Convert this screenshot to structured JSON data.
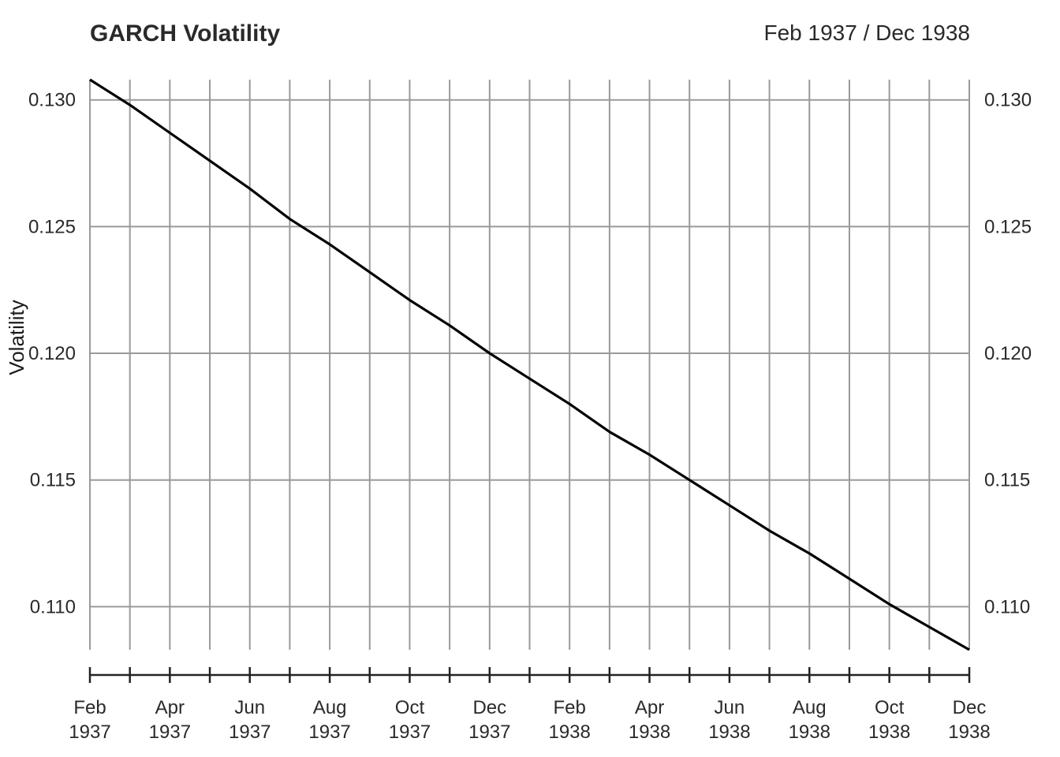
{
  "chart_data": {
    "type": "line",
    "title": "GARCH Volatility",
    "date_range_label": "Feb 1937 / Dec 1938",
    "ylabel": "Volatility",
    "xlabel": "",
    "ylim": [
      0.1083,
      0.1308
    ],
    "yticks": [
      "0.110",
      "0.115",
      "0.120",
      "0.125",
      "0.130"
    ],
    "grid": true,
    "x_ticks": [
      {
        "date": "1937-02",
        "month": "Feb",
        "year": "1937",
        "label": true
      },
      {
        "date": "1937-03",
        "month": "",
        "year": "",
        "label": false
      },
      {
        "date": "1937-04",
        "month": "Apr",
        "year": "1937",
        "label": true
      },
      {
        "date": "1937-05",
        "month": "",
        "year": "",
        "label": false
      },
      {
        "date": "1937-06",
        "month": "Jun",
        "year": "1937",
        "label": true
      },
      {
        "date": "1937-07",
        "month": "",
        "year": "",
        "label": false
      },
      {
        "date": "1937-08",
        "month": "Aug",
        "year": "1937",
        "label": true
      },
      {
        "date": "1937-09",
        "month": "",
        "year": "",
        "label": false
      },
      {
        "date": "1937-10",
        "month": "Oct",
        "year": "1937",
        "label": true
      },
      {
        "date": "1937-11",
        "month": "",
        "year": "",
        "label": false
      },
      {
        "date": "1937-12",
        "month": "Dec",
        "year": "1937",
        "label": true
      },
      {
        "date": "1938-01",
        "month": "",
        "year": "",
        "label": false
      },
      {
        "date": "1938-02",
        "month": "Feb",
        "year": "1938",
        "label": true
      },
      {
        "date": "1938-03",
        "month": "",
        "year": "",
        "label": false
      },
      {
        "date": "1938-04",
        "month": "Apr",
        "year": "1938",
        "label": true
      },
      {
        "date": "1938-05",
        "month": "",
        "year": "",
        "label": false
      },
      {
        "date": "1938-06",
        "month": "Jun",
        "year": "1938",
        "label": true
      },
      {
        "date": "1938-07",
        "month": "",
        "year": "",
        "label": false
      },
      {
        "date": "1938-08",
        "month": "Aug",
        "year": "1938",
        "label": true
      },
      {
        "date": "1938-09",
        "month": "",
        "year": "",
        "label": false
      },
      {
        "date": "1938-10",
        "month": "Oct",
        "year": "1938",
        "label": true
      },
      {
        "date": "1938-11",
        "month": "",
        "year": "",
        "label": false
      },
      {
        "date": "1938-12",
        "month": "Dec",
        "year": "1938",
        "label": true
      }
    ],
    "series": [
      {
        "color": "#000000",
        "x": [
          "1937-02",
          "1937-03",
          "1937-04",
          "1937-05",
          "1937-06",
          "1937-07",
          "1937-08",
          "1937-09",
          "1937-10",
          "1937-11",
          "1937-12",
          "1938-01",
          "1938-02",
          "1938-03",
          "1938-04",
          "1938-05",
          "1938-06",
          "1938-07",
          "1938-08",
          "1938-09",
          "1938-10",
          "1938-11",
          "1938-12"
        ],
        "values": [
          0.1308,
          0.1298,
          0.1287,
          0.1276,
          0.1265,
          0.1253,
          0.1243,
          0.1232,
          0.1221,
          0.1211,
          0.12,
          0.119,
          0.118,
          0.1169,
          0.116,
          0.115,
          0.114,
          0.113,
          0.1121,
          0.1111,
          0.1101,
          0.1092,
          0.1083
        ]
      }
    ]
  }
}
